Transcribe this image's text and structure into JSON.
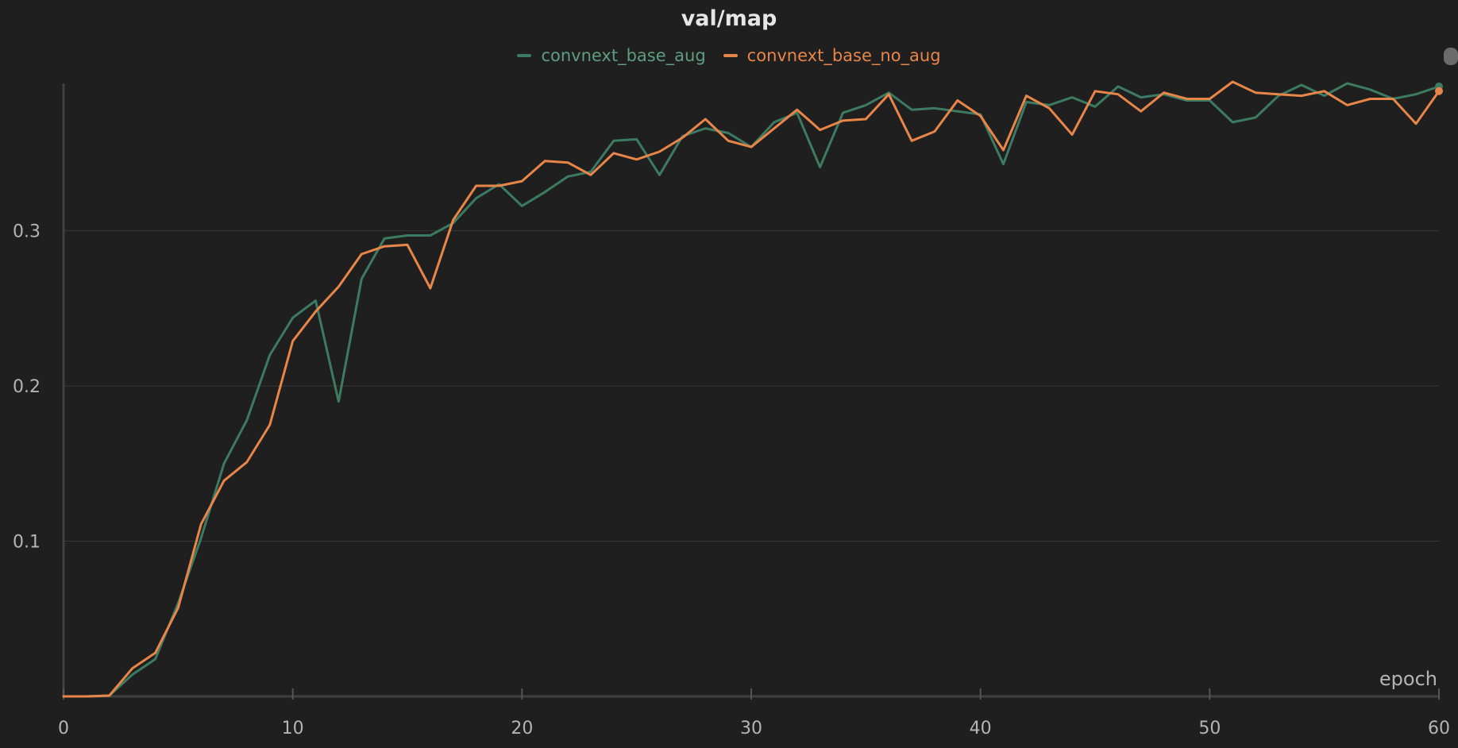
{
  "title": "val/map",
  "colors": {
    "background": "#1f1f1f",
    "grid": "#383838",
    "axis": "#404040",
    "tick_text": "#b4b4b4",
    "title": "#e6e6e6"
  },
  "chart_data": {
    "type": "line",
    "title": "val/map",
    "xlabel": "epoch",
    "ylabel": "",
    "xlim": [
      0,
      60
    ],
    "ylim": [
      0,
      0.395
    ],
    "xticks": [
      "0",
      "10",
      "20",
      "30",
      "40",
      "50",
      "60"
    ],
    "yticks": [
      "0.1",
      "0.2",
      "0.3"
    ],
    "grid": true,
    "legend_position": "top-center",
    "x": [
      0,
      1,
      2,
      3,
      4,
      5,
      6,
      7,
      8,
      9,
      10,
      11,
      12,
      13,
      14,
      15,
      16,
      17,
      18,
      19,
      20,
      21,
      22,
      23,
      24,
      25,
      26,
      27,
      28,
      29,
      30,
      31,
      32,
      33,
      34,
      35,
      36,
      37,
      38,
      39,
      40,
      41,
      42,
      43,
      44,
      45,
      46,
      47,
      48,
      49,
      50,
      51,
      52,
      53,
      54,
      55,
      56,
      57,
      58,
      59,
      60
    ],
    "series": [
      {
        "name": "convnext_base_aug",
        "color": "#3c7a63",
        "values": [
          0.0,
          0.0,
          0.0005,
          0.014,
          0.024,
          0.06,
          0.102,
          0.15,
          0.178,
          0.22,
          0.244,
          0.255,
          0.19,
          0.269,
          0.295,
          0.297,
          0.297,
          0.305,
          0.321,
          0.33,
          0.316,
          0.325,
          0.335,
          0.338,
          0.358,
          0.359,
          0.336,
          0.361,
          0.366,
          0.363,
          0.354,
          0.37,
          0.376,
          0.341,
          0.376,
          0.381,
          0.389,
          0.378,
          0.379,
          0.377,
          0.375,
          0.343,
          0.383,
          0.381,
          0.386,
          0.38,
          0.393,
          0.386,
          0.388,
          0.384,
          0.384,
          0.37,
          0.373,
          0.387,
          0.394,
          0.387,
          0.395,
          0.391,
          0.385,
          0.388,
          0.393
        ]
      },
      {
        "name": "convnext_base_no_aug",
        "color": "#e8864a",
        "values": [
          0.0,
          0.0,
          0.0005,
          0.018,
          0.028,
          0.057,
          0.111,
          0.139,
          0.151,
          0.175,
          0.229,
          0.248,
          0.264,
          0.285,
          0.29,
          0.291,
          0.263,
          0.307,
          0.329,
          0.329,
          0.332,
          0.345,
          0.344,
          0.336,
          0.35,
          0.346,
          0.351,
          0.36,
          0.372,
          0.358,
          0.354,
          0.366,
          0.378,
          0.365,
          0.371,
          0.372,
          0.388,
          0.358,
          0.364,
          0.384,
          0.374,
          0.352,
          0.387,
          0.379,
          0.362,
          0.39,
          0.388,
          0.377,
          0.389,
          0.385,
          0.385,
          0.396,
          0.389,
          0.388,
          0.387,
          0.39,
          0.381,
          0.385,
          0.385,
          0.369,
          0.39
        ]
      }
    ]
  }
}
